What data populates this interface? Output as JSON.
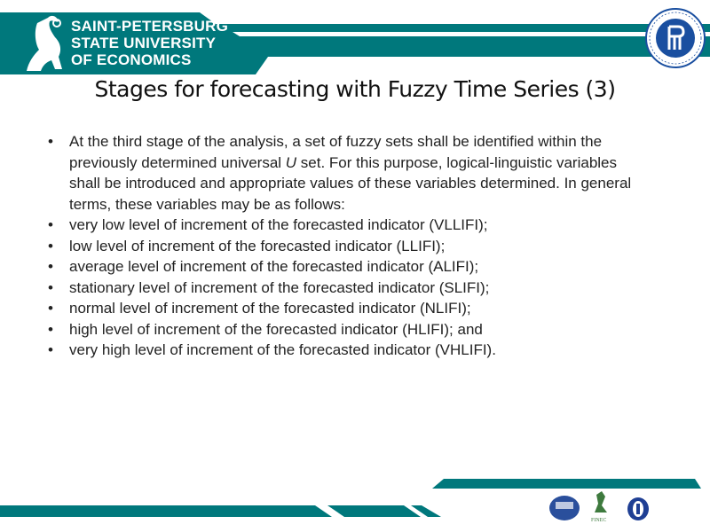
{
  "header": {
    "university_lines": [
      "SAINT-PETERSBURG",
      "STATE UNIVERSITY",
      "OF ECONOMICS"
    ],
    "partner_logo": "HSE Higher School of Economics seal",
    "brand_color": "#00787C"
  },
  "title": "Stages for forecasting with Fuzzy Time Series (3)",
  "bullets": [
    {
      "pre": "At the third stage of the analysis, a set of fuzzy sets shall be identified within the previously determined universal ",
      "em": "U",
      "post": " set. For this purpose, logical-linguistic variables shall be introduced and appropriate values of these variables determined. In general terms, these variables may be as follows:"
    },
    {
      "pre": "very low level of increment of the forecasted indicator (VLLIFI);"
    },
    {
      "pre": "low level of increment of the forecasted indicator (LLIFI);"
    },
    {
      "pre": "average level of increment of the forecasted indicator (ALIFI);"
    },
    {
      "pre": "stationary level of increment of the forecasted indicator (SLIFI);"
    },
    {
      "pre": "normal level of increment of the forecasted indicator (NLIFI);"
    },
    {
      "pre": "high level of increment of the forecasted indicator (HLIFI); and"
    },
    {
      "pre": "very high level of increment of the forecasted indicator (VHLIFI)."
    }
  ],
  "footer": {
    "logos": [
      "ENGECON seal",
      "FINEC griffin",
      "emblem"
    ],
    "finec_text": "FINEC"
  }
}
